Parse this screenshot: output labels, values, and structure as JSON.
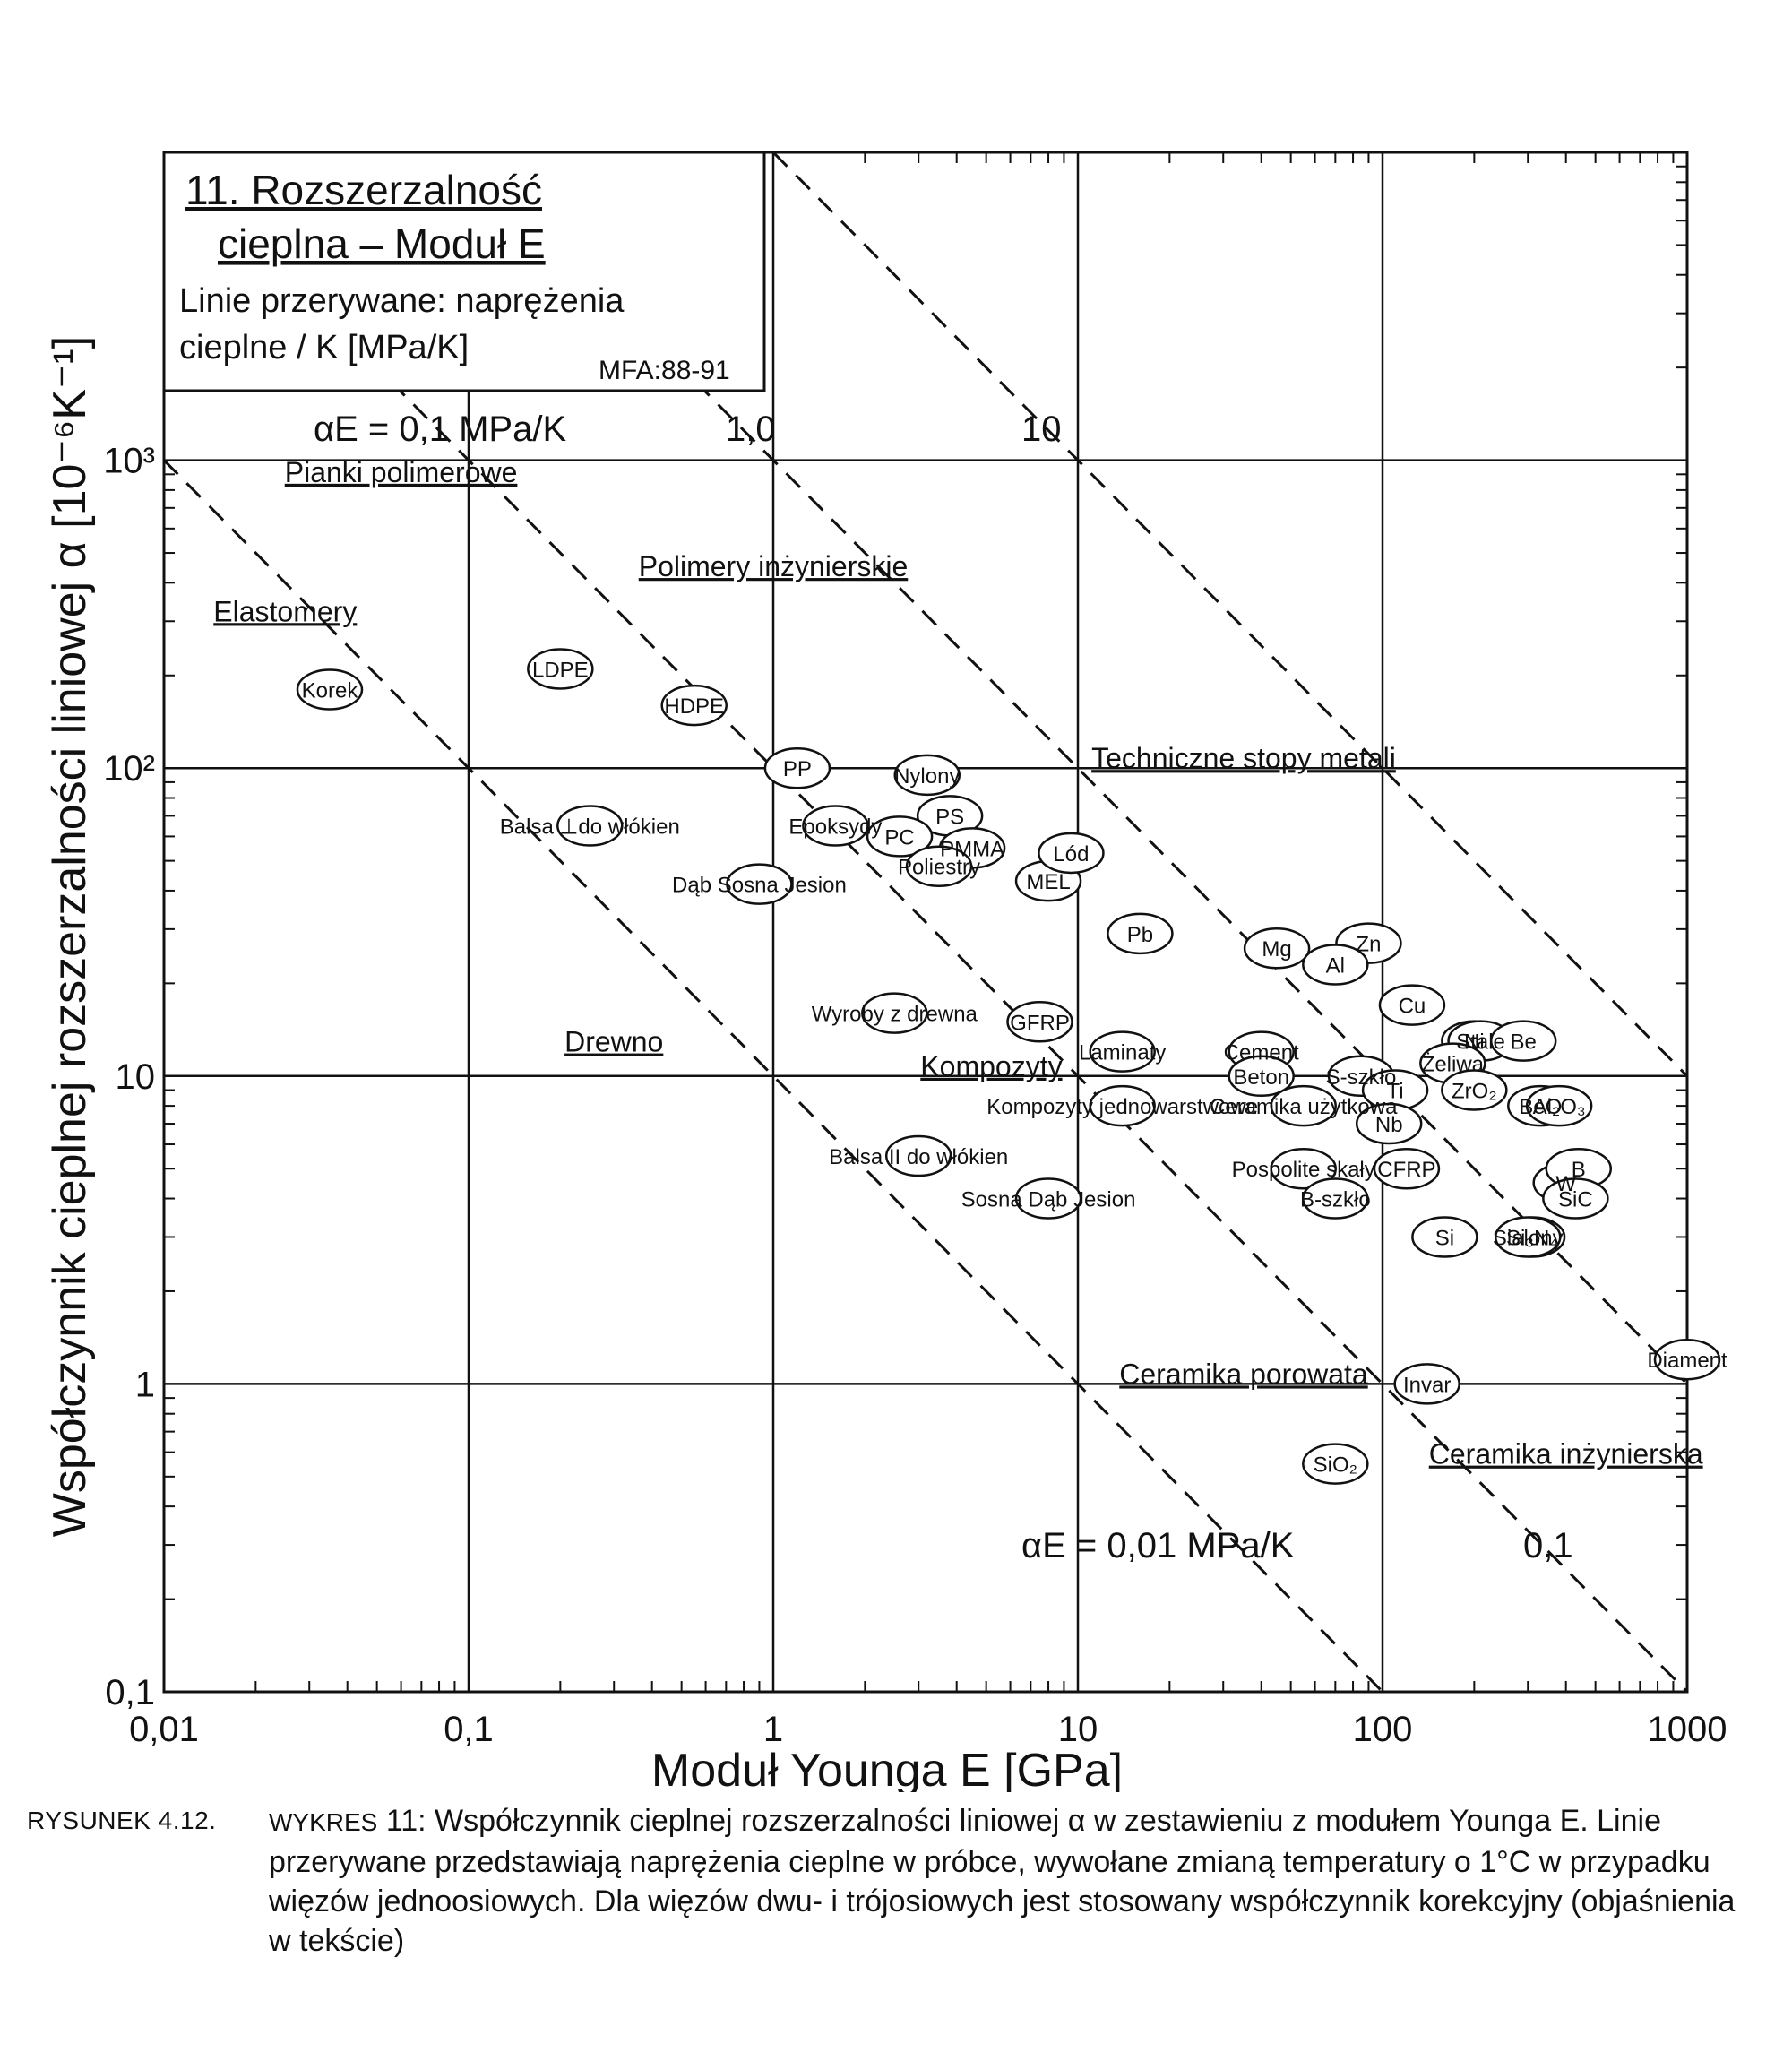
{
  "chart_data": {
    "type": "scatter",
    "title": "11. Rozszerzalność cieplna – Moduł E",
    "subtitle": "Linie przerywane: naprężenia cieplne / K [MPa/K]",
    "source_code": "MFA:88-91",
    "xlabel": "Moduł Younga E [GPa]",
    "ylabel": "Współczynnik cieplnej rozszerzalności liniowej α [10⁻⁶K⁻¹]",
    "x_scale": "log",
    "y_scale": "log",
    "xlim": [
      0.01,
      1000
    ],
    "ylim": [
      0.1,
      10000
    ],
    "x_ticks": [
      0.01,
      0.1,
      1,
      10,
      100,
      1000
    ],
    "x_tick_labels": [
      "0,01",
      "0,1",
      "1",
      "10",
      "100",
      "1000"
    ],
    "y_ticks": [
      0.1,
      1,
      10,
      100,
      1000
    ],
    "y_tick_labels": [
      "0,1",
      "1",
      "10",
      "10²",
      "10³"
    ],
    "grid": true,
    "guide_lines": [
      {
        "label": "αE = 0,01 MPa/K",
        "product": 0.01
      },
      {
        "label": "αE = 0,1 MPa/K",
        "product": 0.1
      },
      {
        "label": "1,0",
        "product": 1.0
      },
      {
        "label": "10",
        "product": 10
      }
    ],
    "guide_line_extra_labels": [
      "0,1"
    ],
    "families": [
      {
        "name": "Pianki polimerowe",
        "label_x": 0.06,
        "label_y": 850
      },
      {
        "name": "Elastomery",
        "label_x": 0.025,
        "label_y": 300
      },
      {
        "name": "Polimery inżynierskie",
        "label_x": 1.0,
        "label_y": 420
      },
      {
        "name": "Drewno",
        "label_x": 0.3,
        "label_y": 12
      },
      {
        "name": "Kompozyty",
        "label_x": 5.2,
        "label_y": 10
      },
      {
        "name": "Techniczne stopy metali",
        "label_x": 35,
        "label_y": 100
      },
      {
        "name": "Ceramika porowata",
        "label_x": 35,
        "label_y": 1.0
      },
      {
        "name": "Ceramika inżynierska",
        "label_x": 400,
        "label_y": 0.55
      }
    ],
    "materials": [
      {
        "name": "Korek",
        "E": 0.035,
        "alpha": 180
      },
      {
        "name": "LDPE",
        "E": 0.2,
        "alpha": 210
      },
      {
        "name": "HDPE",
        "E": 0.55,
        "alpha": 160
      },
      {
        "name": "PP",
        "E": 1.2,
        "alpha": 100
      },
      {
        "name": "Nylony",
        "E": 3.2,
        "alpha": 95
      },
      {
        "name": "PS",
        "E": 3.8,
        "alpha": 70
      },
      {
        "name": "PC",
        "E": 2.6,
        "alpha": 60
      },
      {
        "name": "PMMA",
        "E": 4.5,
        "alpha": 55
      },
      {
        "name": "Epoksydy",
        "E": 1.6,
        "alpha": 65
      },
      {
        "name": "Poliestry",
        "E": 3.5,
        "alpha": 48
      },
      {
        "name": "MEL",
        "E": 8,
        "alpha": 43
      },
      {
        "name": "Lód",
        "E": 9.5,
        "alpha": 53
      },
      {
        "name": "Balsa ⊥do włókien",
        "E": 0.25,
        "alpha": 65
      },
      {
        "name": "Dąb Sosna Jesion",
        "E": 0.9,
        "alpha": 42
      },
      {
        "name": "Wyroby z drewna",
        "E": 2.5,
        "alpha": 16
      },
      {
        "name": "Balsa II do włókien",
        "E": 3,
        "alpha": 5.5
      },
      {
        "name": "Sosna Dąb Jesion",
        "E": 8,
        "alpha": 4
      },
      {
        "name": "GFRP",
        "E": 7.5,
        "alpha": 15
      },
      {
        "name": "Laminaty",
        "E": 14,
        "alpha": 12
      },
      {
        "name": "Kompozyty jednowarstwowe",
        "E": 14,
        "alpha": 8
      },
      {
        "name": "Pb",
        "E": 16,
        "alpha": 29
      },
      {
        "name": "Mg",
        "E": 45,
        "alpha": 26
      },
      {
        "name": "Zn",
        "E": 90,
        "alpha": 27
      },
      {
        "name": "Al",
        "E": 70,
        "alpha": 23
      },
      {
        "name": "Cu",
        "E": 125,
        "alpha": 17
      },
      {
        "name": "Ni",
        "E": 200,
        "alpha": 13
      },
      {
        "name": "Stale",
        "E": 210,
        "alpha": 13
      },
      {
        "name": "Be",
        "E": 290,
        "alpha": 13
      },
      {
        "name": "Żeliwa",
        "E": 170,
        "alpha": 11
      },
      {
        "name": "Cement",
        "E": 40,
        "alpha": 12
      },
      {
        "name": "Beton",
        "E": 40,
        "alpha": 10
      },
      {
        "name": "S-szkło",
        "E": 85,
        "alpha": 10
      },
      {
        "name": "Ceramika użytkowa",
        "E": 55,
        "alpha": 8
      },
      {
        "name": "Pospolite skały",
        "E": 55,
        "alpha": 5
      },
      {
        "name": "CFRP",
        "E": 120,
        "alpha": 5
      },
      {
        "name": "B-szkło",
        "E": 70,
        "alpha": 4
      },
      {
        "name": "Ti",
        "E": 110,
        "alpha": 9
      },
      {
        "name": "Nb",
        "E": 105,
        "alpha": 7
      },
      {
        "name": "BeO",
        "E": 330,
        "alpha": 8
      },
      {
        "name": "ZrO₂",
        "E": 200,
        "alpha": 9
      },
      {
        "name": "Al₂O₃",
        "E": 380,
        "alpha": 8
      },
      {
        "name": "W",
        "E": 400,
        "alpha": 4.5
      },
      {
        "name": "B",
        "E": 440,
        "alpha": 5
      },
      {
        "name": "SiC",
        "E": 430,
        "alpha": 4
      },
      {
        "name": "Si",
        "E": 160,
        "alpha": 3
      },
      {
        "name": "Si₃N₄",
        "E": 310,
        "alpha": 3
      },
      {
        "name": "Sialony",
        "E": 300,
        "alpha": 3
      },
      {
        "name": "Diament",
        "E": 1000,
        "alpha": 1.2
      },
      {
        "name": "SiO₂",
        "E": 70,
        "alpha": 0.55
      },
      {
        "name": "Invar",
        "E": 140,
        "alpha": 1
      }
    ]
  },
  "labels": {
    "title_line1": "11. Rozszerzalność",
    "title_line2": "cieplna – Moduł E",
    "subtitle_line1": "Linie przerywane: naprężenia",
    "subtitle_line2": "cieplne / K  [MPa/K]",
    "source": "MFA:88-91",
    "ae_top": "αE = 0,1 MPa/K",
    "ae_1": "1,0",
    "ae_10": "10",
    "ae_bottom": "αE = 0,01 MPa/K",
    "ae_01_bottom": "0,1",
    "xlabel": "Moduł Younga E [GPa]",
    "ylabel": "Współczynnik cieplnej rozszerzalności liniowej α [10⁻⁶K⁻¹]"
  },
  "caption": {
    "lead": "RYSUNEK 4.12.",
    "prefix": "WYKRES",
    "text": "11: Współczynnik cieplnej rozszerzalności liniowej α w zestawieniu z modułem Younga E. Linie przerywane przedstawiają naprężenia cieplne w próbce, wywołane zmianą temperatury o 1°C w przypadku więzów jednoosiowych. Dla więzów dwu- i trójosiowych jest stosowany współczynnik korekcyjny (objaśnienia w tekście)"
  }
}
